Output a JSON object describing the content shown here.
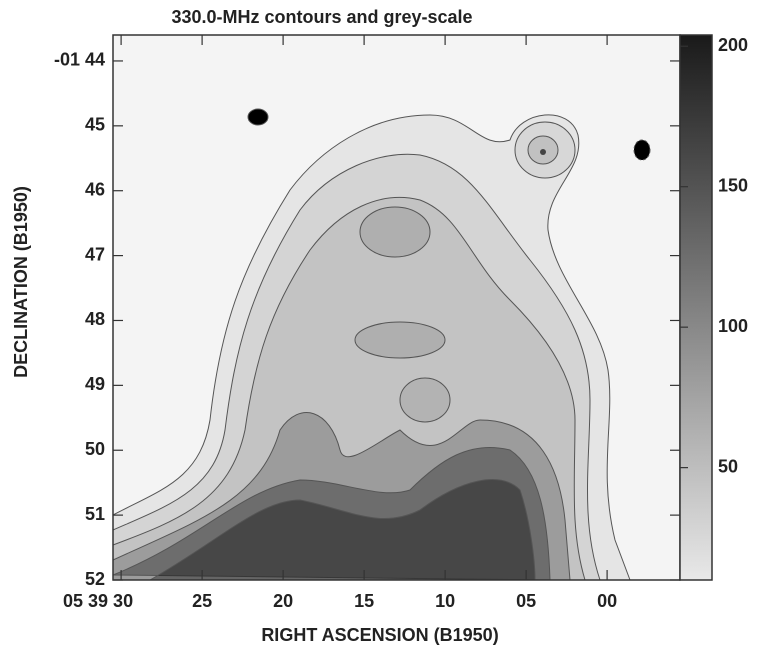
{
  "chart_data": {
    "type": "contour",
    "title": "330.0-MHz contours and grey-scale",
    "xlabel": "RIGHT ASCENSION (B1950)",
    "ylabel": "DECLINATION (B1950)",
    "xlim": [
      30.5,
      -4.5
    ],
    "xticks": [
      {
        "value": 30,
        "label": "05 39 30"
      },
      25,
      20,
      15,
      10,
      {
        "value": 5,
        "label": "05"
      },
      {
        "value": 0,
        "label": "00"
      }
    ],
    "ylim": [
      52,
      43.6
    ],
    "yticks": [
      {
        "value": 44,
        "label": "-01 44"
      },
      45,
      46,
      47,
      48,
      49,
      50,
      51,
      52
    ],
    "clim": [
      10,
      204
    ],
    "cticks": [
      200,
      150,
      100,
      50
    ]
  }
}
